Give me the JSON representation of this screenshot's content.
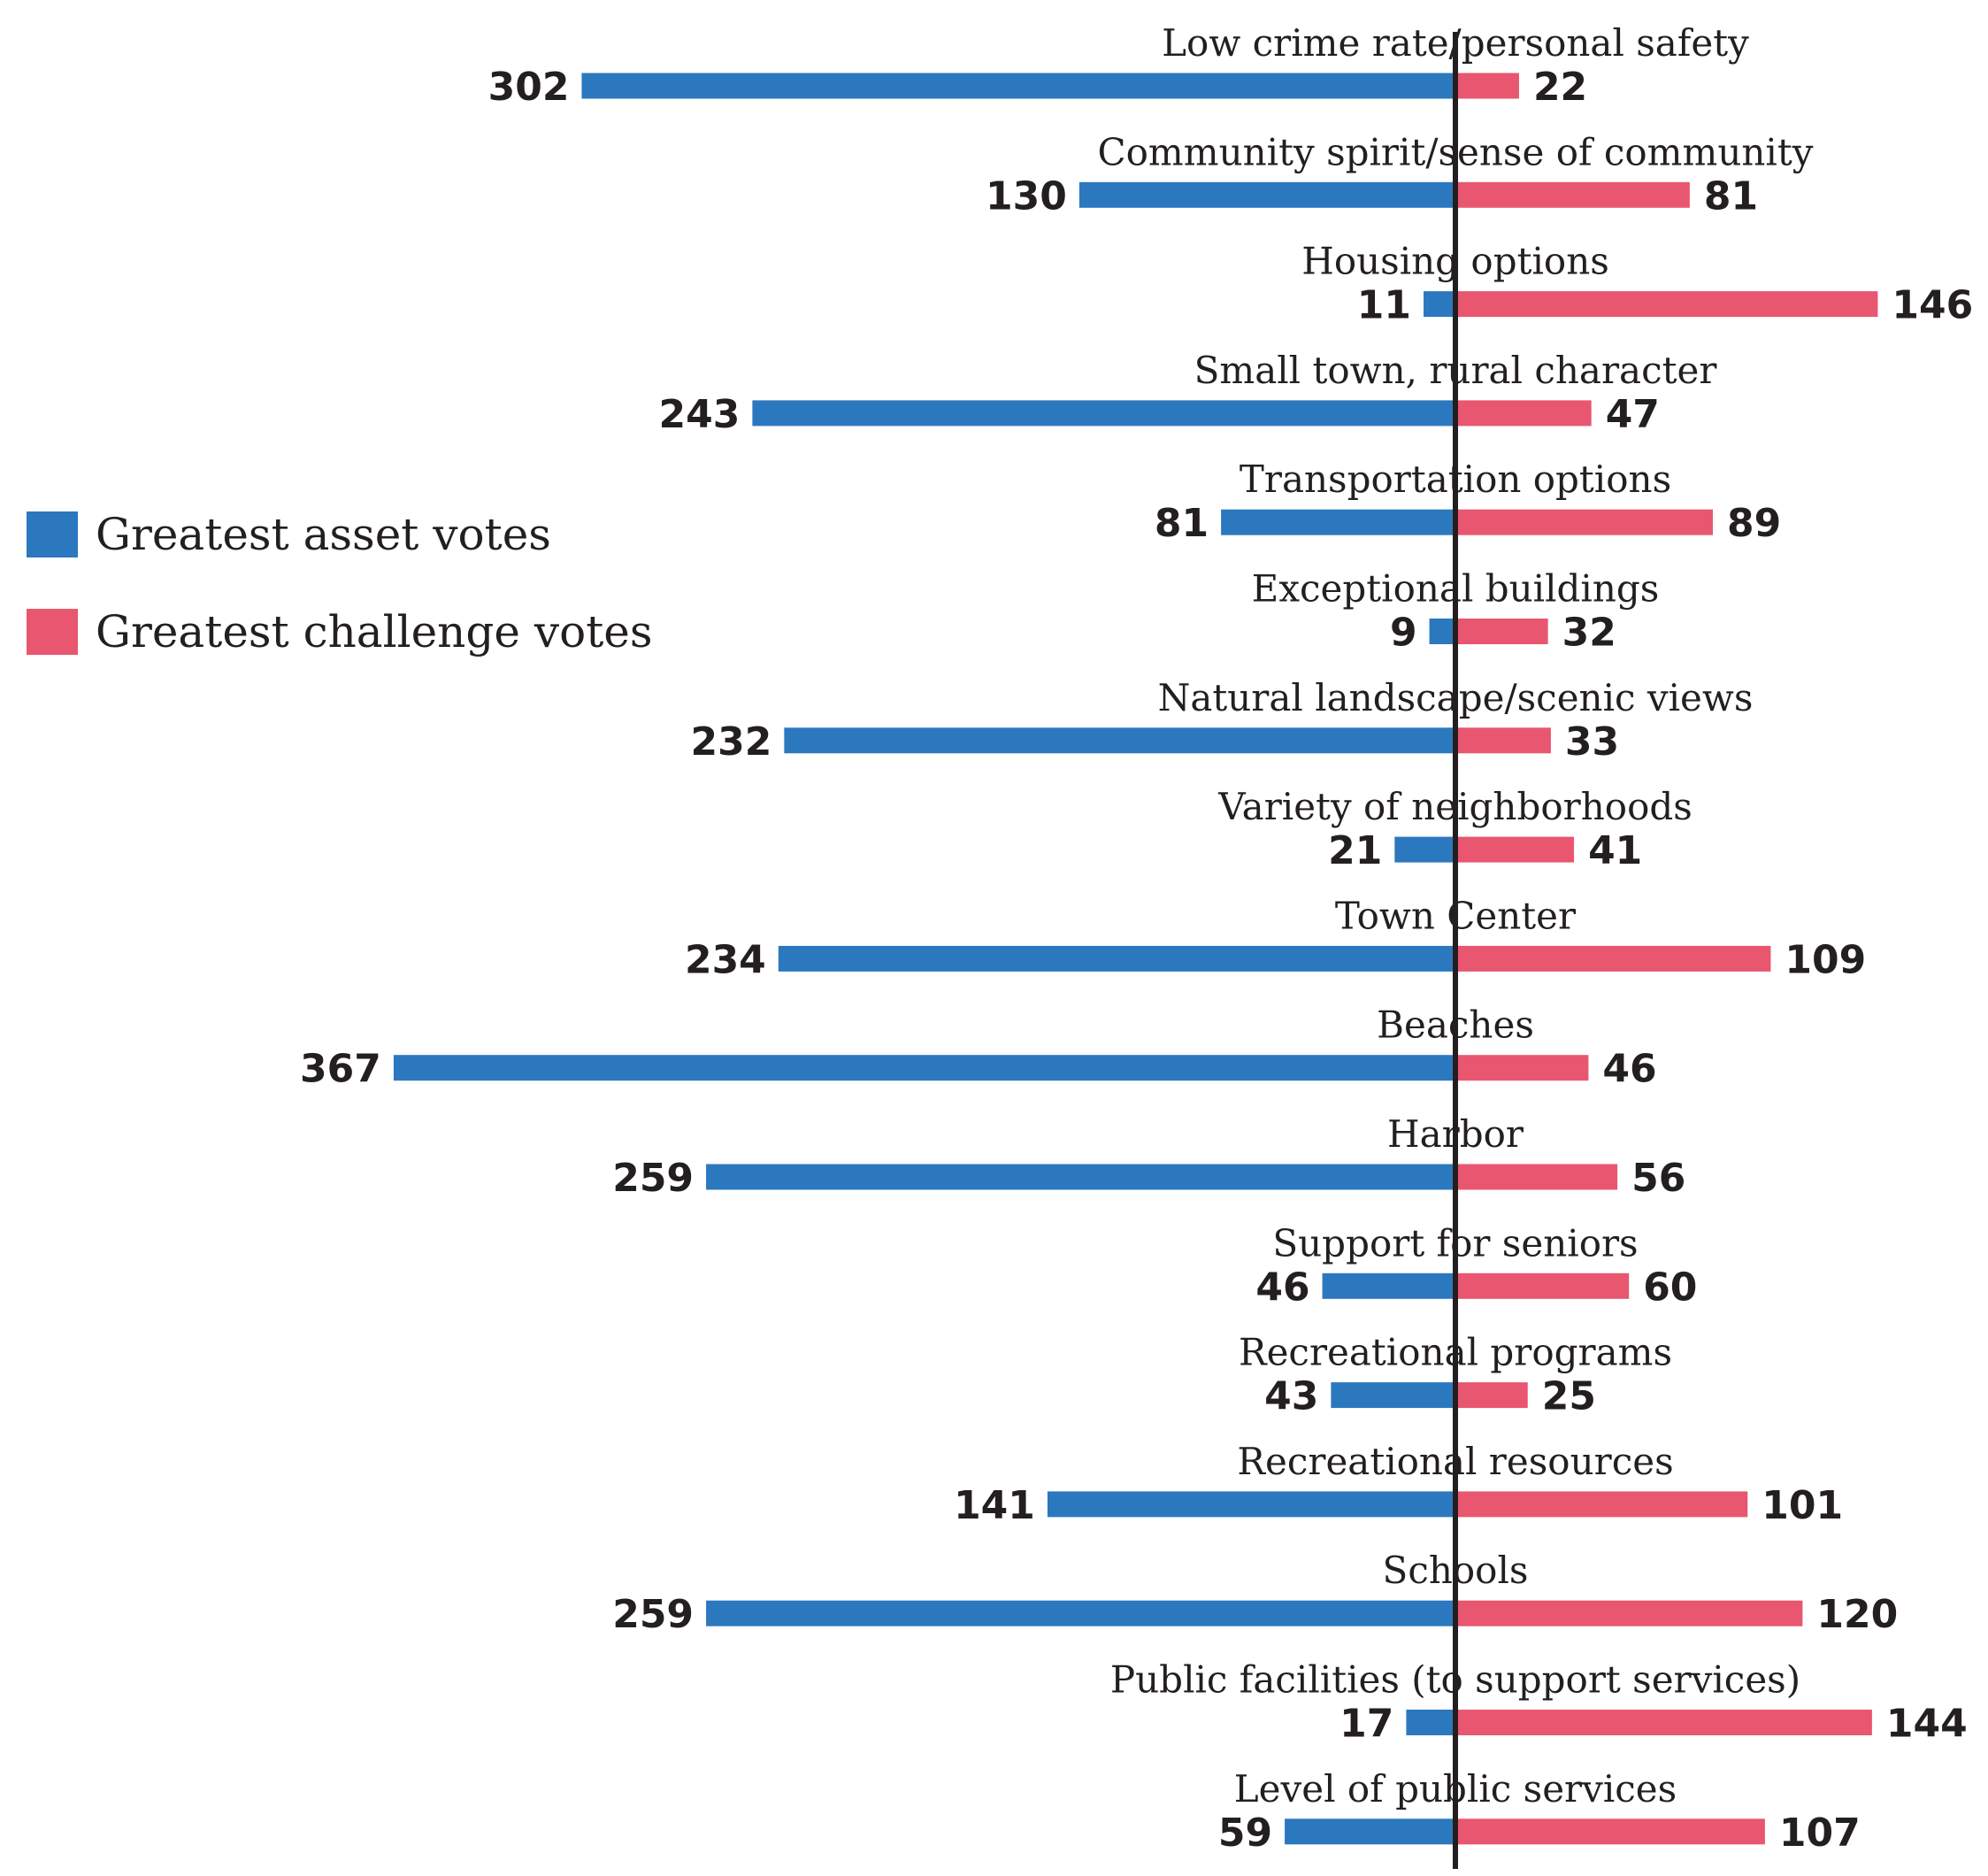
{
  "chart_data": {
    "type": "bar",
    "orientation": "horizontal-diverging",
    "categories": [
      "Low crime rate/personal safety",
      "Community spirit/sense of community",
      "Housing options",
      "Small town, rural character",
      "Transportation options",
      "Exceptional buildings",
      "Natural landscape/scenic views",
      "Variety of neighborhoods",
      "Town Center",
      "Beaches",
      "Harbor",
      "Support for seniors",
      "Recreational programs",
      "Recreational resources",
      "Schools",
      "Public facilities (to support services)",
      "Level of public services"
    ],
    "series": [
      {
        "name": "Greatest asset votes",
        "color": "#2b78bf",
        "values": [
          302,
          130,
          11,
          243,
          81,
          9,
          232,
          21,
          234,
          367,
          259,
          46,
          43,
          141,
          259,
          17,
          59
        ]
      },
      {
        "name": "Greatest challenge votes",
        "color": "#e9566f",
        "values": [
          22,
          81,
          146,
          47,
          89,
          32,
          33,
          41,
          109,
          46,
          56,
          60,
          25,
          101,
          120,
          144,
          107
        ]
      }
    ],
    "legend_position": "left",
    "grid": false
  }
}
